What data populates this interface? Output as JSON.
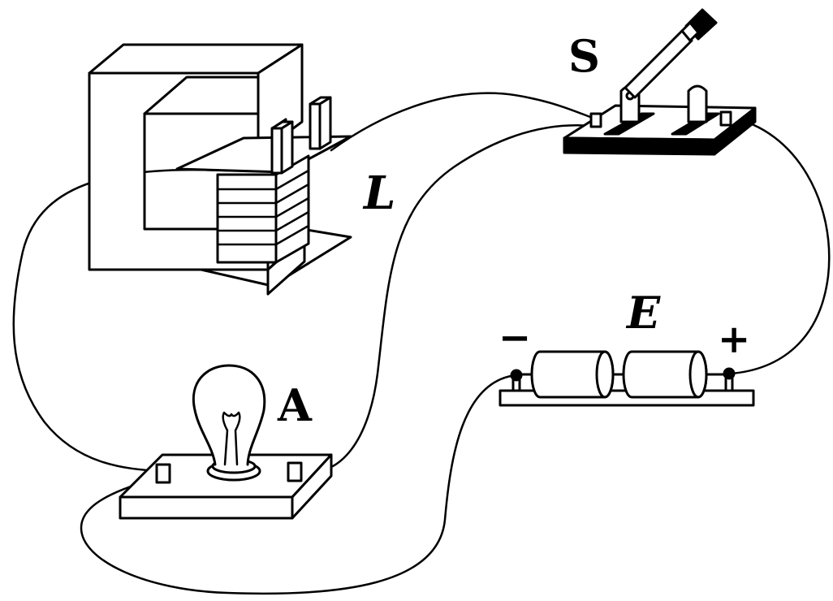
{
  "labels": {
    "switch": "S",
    "inductor": "L",
    "lamp": "A",
    "battery": "E",
    "minus": "−",
    "plus": "+"
  },
  "colors": {
    "ink": "#000000",
    "paper": "#ffffff"
  }
}
